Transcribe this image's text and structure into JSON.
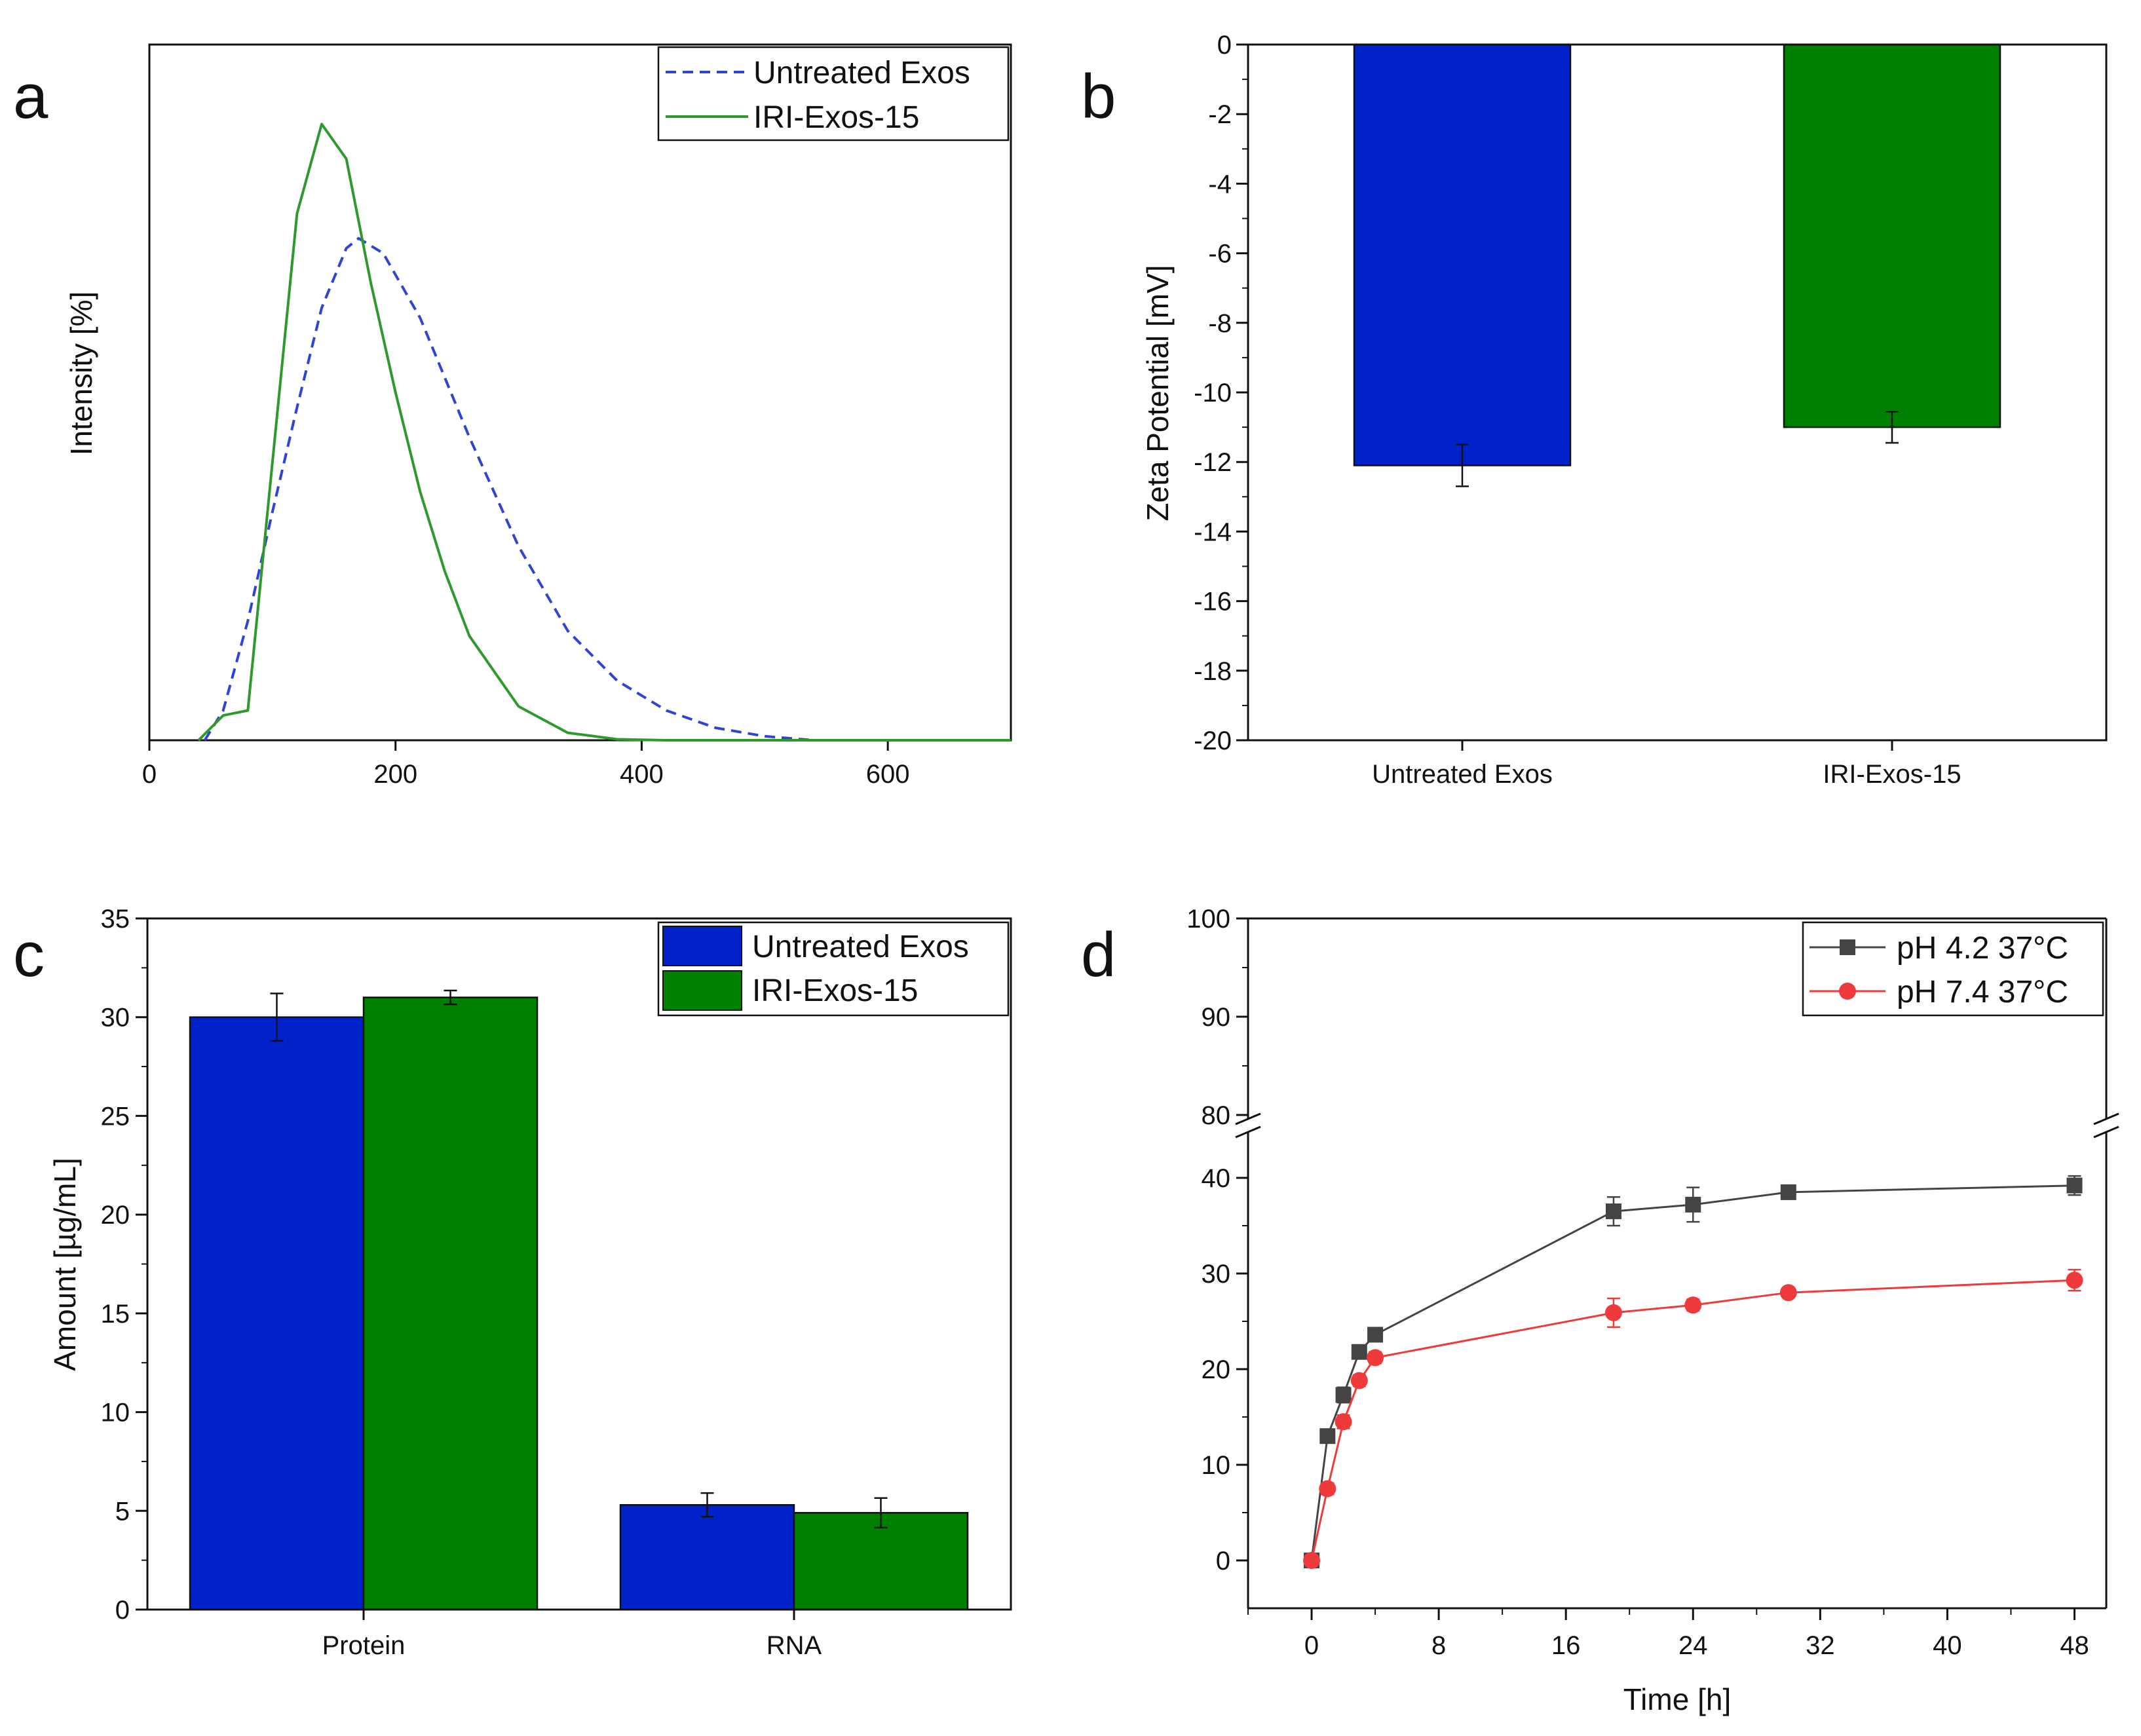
{
  "chart_data": [
    {
      "panel": "a",
      "type": "line",
      "panel_label": "a",
      "xlabel": "",
      "ylabel": "Intensity [%]",
      "xlim": [
        0,
        700
      ],
      "ylim": [
        0,
        14
      ],
      "xticks": [
        0,
        200,
        400,
        600
      ],
      "y_ticks_labeled": false,
      "legend": "top-right",
      "series": [
        {
          "name": "Untreated Exos",
          "style": "dashed",
          "color": "#2f44d6",
          "x": [
            45,
            60,
            80,
            100,
            120,
            140,
            160,
            170,
            190,
            220,
            260,
            300,
            340,
            380,
            420,
            460,
            500,
            540,
            700
          ],
          "y": [
            0,
            0.6,
            2.4,
            4.6,
            6.7,
            8.7,
            9.9,
            10.1,
            9.8,
            8.5,
            6.1,
            3.9,
            2.2,
            1.2,
            0.6,
            0.25,
            0.08,
            0,
            0
          ]
        },
        {
          "name": "IRI-Exos-15",
          "style": "solid",
          "color": "#2e9a2e",
          "x": [
            40,
            60,
            70,
            80,
            100,
            120,
            140,
            160,
            180,
            200,
            220,
            240,
            260,
            300,
            340,
            380,
            420,
            460,
            500,
            520,
            700
          ],
          "y": [
            0,
            0.5,
            0.55,
            0.6,
            5.6,
            10.6,
            12.4,
            11.7,
            9.2,
            7.0,
            5.0,
            3.4,
            2.1,
            0.68,
            0.15,
            0.02,
            0,
            0,
            0,
            0,
            0
          ]
        }
      ]
    },
    {
      "panel": "b",
      "type": "bar",
      "panel_label": "b",
      "title": "",
      "xlabel": "",
      "ylabel": "Zeta Potential [mV]",
      "ylim": [
        -20,
        0
      ],
      "yticks": [
        0,
        -2,
        -4,
        -6,
        -8,
        -10,
        -12,
        -14,
        -16,
        -18,
        -20
      ],
      "categories": [
        "Untreated Exos",
        "IRI-Exos-15"
      ],
      "values": [
        -12.1,
        -11.0
      ],
      "errors": [
        0.6,
        0.45
      ],
      "colors": [
        "#0022c8",
        "#008000"
      ]
    },
    {
      "panel": "c",
      "type": "bar",
      "panel_label": "c",
      "xlabel": "",
      "ylabel": "Amount [µg/mL]",
      "ylim": [
        0,
        35
      ],
      "yticks": [
        0,
        5,
        10,
        15,
        20,
        25,
        30,
        35
      ],
      "categories": [
        "Protein",
        "RNA"
      ],
      "legend": "top-right",
      "series": [
        {
          "name": "Untreated Exos",
          "values": [
            30.0,
            5.3
          ],
          "errors": [
            1.2,
            0.6
          ],
          "color": "#0022c8"
        },
        {
          "name": "IRI-Exos-15",
          "values": [
            31.0,
            4.9
          ],
          "errors": [
            0.35,
            0.75
          ],
          "color": "#008000"
        }
      ]
    },
    {
      "panel": "d",
      "type": "line",
      "panel_label": "d",
      "xlabel": "Time [h]",
      "ylabel": "",
      "xlim": [
        -4,
        50
      ],
      "xticks": [
        0,
        8,
        16,
        24,
        32,
        40,
        48
      ],
      "y_break": {
        "lower": [
          -5,
          45
        ],
        "upper": [
          80,
          100
        ]
      },
      "yticks_lower": [
        0,
        10,
        20,
        30,
        40
      ],
      "yticks_upper": [
        80,
        90,
        100
      ],
      "ytick_labels_upper": [
        "80",
        "90",
        "100"
      ],
      "legend": "top-right",
      "series": [
        {
          "name": "pH 4.2 37°C",
          "color": "#444444",
          "marker": "square",
          "x": [
            0,
            1,
            2,
            3,
            4,
            19,
            24,
            30,
            48
          ],
          "y": [
            0,
            13,
            17.3,
            21.8,
            23.6,
            36.5,
            37.2,
            38.5,
            39.2
          ],
          "errors": [
            0.5,
            0.6,
            0.8,
            0.6,
            0.6,
            1.5,
            1.8,
            0.5,
            1.0
          ]
        },
        {
          "name": "pH 7.4 37°C",
          "color": "#ee3a3a",
          "marker": "circle",
          "x": [
            0,
            1,
            2,
            3,
            4,
            19,
            24,
            30,
            48
          ],
          "y": [
            0,
            7.5,
            14.5,
            18.8,
            21.2,
            25.9,
            26.7,
            28.0,
            29.3
          ],
          "errors": [
            0.5,
            0.6,
            0.7,
            0.6,
            0.6,
            1.5,
            0.6,
            0.5,
            1.1
          ]
        }
      ]
    }
  ]
}
